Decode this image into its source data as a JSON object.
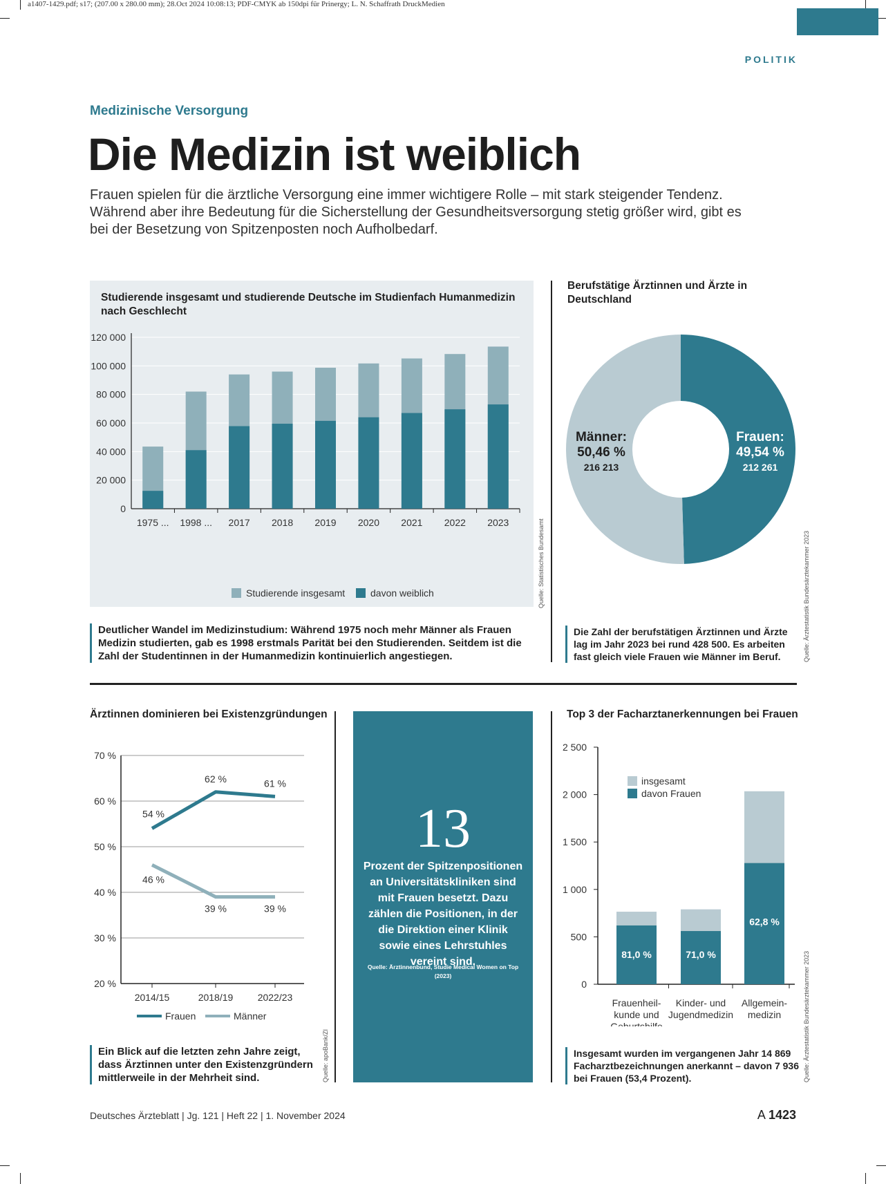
{
  "print_info": "a1407-1429.pdf; s17; (207.00 x 280.00 mm); 28.Oct 2024 10:08:13; PDF-CMYK ab 150dpi für Prinergy; L. N. Schaffrath DruckMedien",
  "section": "POLITIK",
  "kicker": "Medizinische Versorgung",
  "headline": "Die Medizin ist weiblich",
  "lead": "Frauen spielen für die ärztliche Versorgung eine immer wichtigere Rolle – mit stark steigender Tendenz. Während aber ihre Bedeutung für die Sicherstellung der Gesundheitsversorgung stetig größer wird, gibt es bei der Besetzung von Spitzenposten noch Aufholbedarf.",
  "captions": {
    "students": "Deutlicher Wandel im Medizinstudium: Während 1975 noch mehr Männer als Frauen Medizin studierten, gab es 1998 erstmals Parität bei den Studierenden. Seitdem ist die Zahl der Studentinnen in der Humanmedizin kontinuierlich angestiegen.",
    "doctors": "Die Zahl der berufstätigen Ärztinnen und Ärzte lag im Jahr 2023 bei rund 428 500. Es arbeiten fast gleich viele Frauen wie Männer im Beruf.",
    "founders": "Ein Blick auf die letzten zehn Jahre zeigt, dass Ärztinnen unter den Existenzgründern mittlerweile in der Mehrheit sind.",
    "specialists": "Insgesamt wurden im vergangenen Jahr 14 869 Facharztbezeichnungen anerkannt – davon 7 936 bei Frauen (53,4 Prozent)."
  },
  "sources": {
    "students": "Quelle: Statistisches Bundesamt",
    "doctors": "Quelle: Ärztestatistik Bundesärztekammer 2023",
    "founders": "Quelle: apoBank/ZI",
    "specialists": "Quelle: Ärztestatistik Bundesärztekammer 2023"
  },
  "highlight": {
    "number": "13",
    "text": "Prozent der Spitzenpositionen an Universitätskliniken sind mit Frauen besetzt. Dazu zählen die Positionen, in der die Direktion einer Klinik sowie eines Lehrstuhles vereint sind.",
    "source": "Quelle: Ärztinnenbund, Studie Medical Women on Top (2023)"
  },
  "footer": {
    "journal": "Deutsches Ärzteblatt | Jg. 121 | Heft 22 | 1. November 2024",
    "page_prefix": "A",
    "page_number": "1423"
  },
  "chart_data": [
    {
      "id": "students",
      "type": "bar",
      "stacked": "overlay",
      "title": "Studierende insgesamt und studierende Deutsche im Studienfach Humanmedizin nach Geschlecht",
      "categories": [
        "1975 ...",
        "1998 ...",
        "2017",
        "2018",
        "2019",
        "2020",
        "2021",
        "2022",
        "2023"
      ],
      "series": [
        {
          "name": "Studierende insgesamt",
          "values": [
            43500,
            82000,
            94000,
            96000,
            98700,
            101700,
            105200,
            108300,
            113500
          ],
          "color": "#8fb0ba"
        },
        {
          "name": "davon weiblich",
          "values": [
            12500,
            41000,
            57800,
            59500,
            61500,
            64000,
            67000,
            69600,
            73000
          ],
          "color": "#2e7a8e"
        }
      ],
      "ylim": [
        0,
        120000
      ],
      "yticks": [
        0,
        20000,
        40000,
        60000,
        80000,
        100000,
        120000
      ],
      "ytick_labels": [
        "0",
        "20 000",
        "40 000",
        "60 000",
        "80 000",
        "100 000",
        "120 000"
      ],
      "grid": true,
      "legend": "bottom"
    },
    {
      "id": "doctors",
      "type": "pie",
      "donut": true,
      "title": "Berufstätige Ärztinnen und Ärzte in Deutschland",
      "slices": [
        {
          "name": "Frauen:",
          "percent_label": "49,54 %",
          "count_label": "212 261",
          "value": 212261,
          "color": "#2e7a8e"
        },
        {
          "name": "Männer:",
          "percent_label": "50,46 %",
          "count_label": "216 213",
          "value": 216213,
          "color": "#b9cbd2"
        }
      ]
    },
    {
      "id": "founders",
      "type": "line",
      "title": "Ärztinnen dominieren bei Existenzgründungen",
      "x": [
        "2014/15",
        "2018/19",
        "2022/23"
      ],
      "series": [
        {
          "name": "Frauen",
          "values": [
            54,
            62,
            61
          ],
          "labels": [
            "54 %",
            "62 %",
            "61 %"
          ],
          "color": "#2e7a8e"
        },
        {
          "name": "Männer",
          "values": [
            46,
            39,
            39
          ],
          "labels": [
            "46 %",
            "39 %",
            "39 %"
          ],
          "color": "#8fb0ba"
        }
      ],
      "ylim": [
        20,
        70
      ],
      "yticks": [
        20,
        30,
        40,
        50,
        60,
        70
      ],
      "ytick_labels": [
        "20 %",
        "30 %",
        "40 %",
        "50 %",
        "60 %",
        "70 %"
      ],
      "grid": true,
      "legend": "bottom"
    },
    {
      "id": "specialists",
      "type": "bar",
      "stacked": "overlay",
      "title": "Top 3 der Facharztanerkennungen bei Frauen",
      "categories": [
        [
          "Frauenheil-",
          "kunde und",
          "Geburtshilfe"
        ],
        [
          "Kinder- und",
          "Jugendmedizin"
        ],
        [
          "Allgemein-",
          "medizin"
        ]
      ],
      "series": [
        {
          "name": "insgesamt",
          "values": [
            765,
            790,
            2035
          ],
          "color": "#b9cbd2"
        },
        {
          "name": "davon Frauen",
          "values": [
            620,
            561,
            1278
          ],
          "labels": [
            "81,0 %",
            "71,0 %",
            "62,8 %"
          ],
          "color": "#2e7a8e"
        }
      ],
      "ylim": [
        0,
        2500
      ],
      "yticks": [
        0,
        500,
        1000,
        1500,
        2000,
        2500
      ],
      "ytick_labels": [
        "0",
        "500",
        "1 000",
        "1 500",
        "2 000",
        "2 500"
      ],
      "grid": false,
      "legend": "top-left"
    }
  ]
}
